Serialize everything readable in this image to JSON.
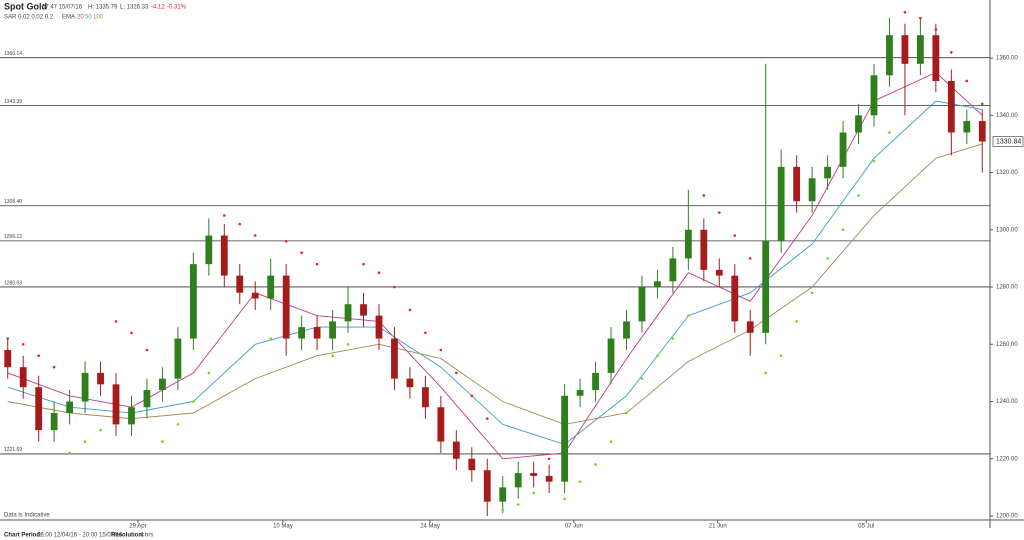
{
  "chart_data": {
    "type": "candlestick",
    "title": "Spot Gold",
    "time": "07:47 15/07/16",
    "high_text": "H: 1335.79",
    "low_text": "L: 1326.33",
    "change": "-4.12",
    "change_pct": "-0.31%",
    "change_color": "#d0261c",
    "note": "Data is Indicative",
    "footer": [
      {
        "label": "Chart Period:",
        "text": "16:00 12/04/16 - 20:00 15/07/16"
      },
      {
        "label": "Resolution:",
        "text": "4 hrs"
      }
    ],
    "up_color": "#2f7f1d",
    "down_color": "#a61c1c",
    "open": [
      1258,
      1252,
      1245,
      1230,
      1236,
      1240,
      1250,
      1246,
      1232,
      1238,
      1244,
      1248,
      1262,
      1288,
      1298,
      1284,
      1278,
      1276,
      1284,
      1262,
      1266,
      1262,
      1268,
      1274,
      1270,
      1262,
      1248,
      1245,
      1238,
      1226,
      1220,
      1216,
      1205,
      1210,
      1215,
      1214,
      1212,
      1242,
      1244,
      1250,
      1262,
      1268,
      1280,
      1282,
      1290,
      1300,
      1286,
      1284,
      1268,
      1264,
      1296,
      1322,
      1310,
      1318,
      1322,
      1334,
      1340,
      1354,
      1368,
      1358,
      1368,
      1352,
      1334,
      1338
    ],
    "high": [
      1262,
      1256,
      1249,
      1240,
      1244,
      1254,
      1254,
      1250,
      1242,
      1248,
      1252,
      1266,
      1292,
      1304,
      1302,
      1288,
      1282,
      1290,
      1288,
      1270,
      1270,
      1272,
      1280,
      1278,
      1274,
      1266,
      1252,
      1249,
      1242,
      1230,
      1224,
      1220,
      1214,
      1219,
      1219,
      1218,
      1246,
      1248,
      1254,
      1266,
      1272,
      1284,
      1286,
      1294,
      1314,
      1304,
      1290,
      1288,
      1272,
      1358,
      1328,
      1326,
      1322,
      1326,
      1338,
      1344,
      1358,
      1374,
      1372,
      1374,
      1372,
      1356,
      1342,
      1342
    ],
    "low": [
      1248,
      1241,
      1226,
      1226,
      1232,
      1236,
      1242,
      1228,
      1228,
      1234,
      1240,
      1244,
      1258,
      1284,
      1280,
      1274,
      1272,
      1272,
      1256,
      1258,
      1258,
      1258,
      1264,
      1266,
      1258,
      1244,
      1241,
      1234,
      1222,
      1216,
      1212,
      1200,
      1201,
      1206,
      1210,
      1208,
      1208,
      1238,
      1240,
      1246,
      1258,
      1264,
      1276,
      1278,
      1286,
      1282,
      1280,
      1264,
      1256,
      1260,
      1292,
      1306,
      1306,
      1314,
      1318,
      1330,
      1336,
      1350,
      1340,
      1354,
      1348,
      1326,
      1330,
      1320
    ],
    "close": [
      1252,
      1245,
      1230,
      1236,
      1240,
      1250,
      1246,
      1232,
      1238,
      1244,
      1248,
      1262,
      1288,
      1298,
      1284,
      1278,
      1276,
      1284,
      1262,
      1266,
      1262,
      1268,
      1274,
      1270,
      1262,
      1248,
      1245,
      1238,
      1226,
      1220,
      1216,
      1205,
      1210,
      1215,
      1214,
      1212,
      1242,
      1244,
      1250,
      1262,
      1268,
      1280,
      1282,
      1290,
      1300,
      1286,
      1284,
      1268,
      1264,
      1296,
      1322,
      1310,
      1318,
      1322,
      1334,
      1340,
      1354,
      1368,
      1358,
      1368,
      1352,
      1334,
      1338,
      1330.84
    ],
    "sar": {
      "label": "SAR 0.02 0.02 0.2",
      "color_above": "#e0281c",
      "color_below": "#6ed61e",
      "values": [
        1262,
        1260,
        1256,
        1252,
        1222,
        1226,
        1230,
        1268,
        1264,
        1258,
        1226,
        1232,
        1240,
        1250,
        1305,
        1302,
        1298,
        1262,
        1296,
        1292,
        1288,
        1256,
        1260,
        1288,
        1285,
        1280,
        1272,
        1264,
        1258,
        1250,
        1242,
        1234,
        1202,
        1204,
        1208,
        1220,
        1206,
        1212,
        1218,
        1226,
        1236,
        1248,
        1256,
        1262,
        1270,
        1312,
        1306,
        1298,
        1290,
        1250,
        1256,
        1268,
        1278,
        1290,
        1300,
        1312,
        1324,
        1334,
        1376,
        1374,
        1370,
        1362,
        1352,
        1344
      ]
    },
    "ema": {
      "label": "EMA",
      "x": [
        0.5,
        4.5,
        8.5,
        12.5,
        16.5,
        20.5,
        24.5,
        28.5,
        32.5,
        36.5,
        40.5,
        44.5,
        48.5,
        52.5,
        56.5,
        60.5,
        63.5
      ],
      "series": [
        {
          "name": "20",
          "color": "#c2378a",
          "values": [
            1250,
            1242,
            1238,
            1250,
            1278,
            1270,
            1268,
            1245,
            1220,
            1222,
            1255,
            1285,
            1275,
            1305,
            1345,
            1355,
            1340
          ]
        },
        {
          "name": "50",
          "color": "#3a9cc6",
          "values": [
            1245,
            1238,
            1236,
            1240,
            1260,
            1266,
            1266,
            1252,
            1232,
            1225,
            1242,
            1270,
            1278,
            1295,
            1325,
            1345,
            1342
          ]
        },
        {
          "name": "100",
          "color": "#a48a58",
          "values": [
            1240,
            1236,
            1234,
            1236,
            1248,
            1256,
            1260,
            1255,
            1240,
            1232,
            1236,
            1254,
            1265,
            1280,
            1305,
            1325,
            1330
          ]
        }
      ]
    },
    "levels": [
      1360.14,
      1343.39,
      {
        "value": 1308.4,
        "label": "1308.40"
      },
      1296.13,
      1280.03,
      1221.69
    ],
    "xlim": [
      0,
      64
    ],
    "xticks": [
      {
        "value": 8.92,
        "label": "29 Apr"
      },
      {
        "value": 18.29,
        "label": "10 May"
      },
      {
        "value": 27.8,
        "label": "24 May"
      },
      {
        "value": 37.1,
        "label": "07 Jun"
      },
      {
        "value": 46.4,
        "label": "21 Jun"
      },
      {
        "value": 56.0,
        "label": "05 Jul"
      }
    ],
    "ylim": [
      1198.6,
      1376.8
    ],
    "yticks": [
      {
        "value": 1200,
        "label": "1200.00"
      },
      {
        "value": 1220,
        "label": "1220.00"
      },
      {
        "value": 1240,
        "label": "1240.00"
      },
      {
        "value": 1260,
        "label": "1260.00"
      },
      {
        "value": 1280,
        "label": "1280.00"
      },
      {
        "value": 1300,
        "label": "1300.00"
      },
      {
        "value": 1320,
        "label": "1320.00"
      },
      {
        "value": 1340,
        "label": "1340.00"
      },
      {
        "value": 1360,
        "label": "1360.00"
      }
    ]
  }
}
